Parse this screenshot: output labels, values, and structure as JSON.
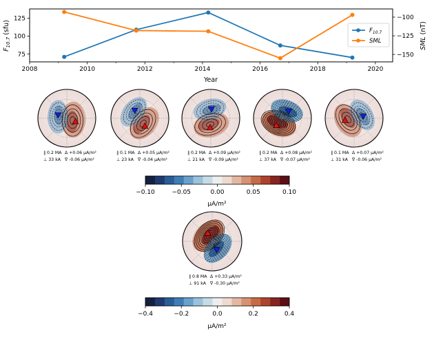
{
  "chart_data": [
    {
      "type": "line",
      "xlabel": "Year",
      "xlim": [
        2008,
        2020.6
      ],
      "xticks": [
        "2008",
        "2010",
        "2012",
        "2014",
        "2016",
        "2018",
        "2020"
      ],
      "left_axis": {
        "label": "F",
        "label_sub": "10.7",
        "label_unit": " (sfu)",
        "ylim": [
          64,
          138
        ],
        "ticks": [
          "75",
          "100",
          "125"
        ]
      },
      "right_axis": {
        "label": "SML",
        "label_unit": " (nT)",
        "ylim": [
          -160,
          -89
        ],
        "ticks": [
          "-100",
          "-125",
          "-150"
        ],
        "tick_labels": [
          "−100",
          "−125",
          "−150"
        ]
      },
      "series": [
        {
          "name": "F10.7",
          "legend_main": "F",
          "legend_sub": "10.7",
          "color": "#1f77b4",
          "axis": "left",
          "x": [
            2009.2,
            2011.7,
            2014.2,
            2016.7,
            2019.2
          ],
          "values": [
            71,
            109,
            133,
            87,
            70
          ]
        },
        {
          "name": "SML",
          "legend_main": "SML",
          "legend_sub": "",
          "color": "#ff7f0e",
          "axis": "right",
          "x": [
            2009.2,
            2011.7,
            2014.2,
            2016.7,
            2019.2
          ],
          "values": [
            -93,
            -118,
            -119,
            -155,
            -97
          ]
        }
      ],
      "legend_position": "upper-right"
    },
    {
      "type": "heatmap",
      "description": "polar current maps",
      "maps": [
        {
          "l1": "∥ 0.2 MA",
          "l2": "⊥ 33 kA",
          "r1": "Δ +0.06 μA/m²",
          "r2": "∇ -0.06 μA/m²"
        },
        {
          "l1": "∥ 0.1 MA",
          "l2": "⊥ 23 kA",
          "r1": "Δ +0.05 μA/m²",
          "r2": "∇ -0.04 μA/m²"
        },
        {
          "l1": "∥ 0.2 MA",
          "l2": "⊥ 21 kA",
          "r1": "Δ +0.09 μA/m²",
          "r2": "∇ -0.09 μA/m²"
        },
        {
          "l1": "∥ 0.2 MA",
          "l2": "⊥ 37 kA",
          "r1": "Δ +0.08 μA/m²",
          "r2": "∇ -0.07 μA/m²"
        },
        {
          "l1": "∥ 0.1 MA",
          "l2": "⊥ 31 kA",
          "r1": "Δ +0.07 μA/m²",
          "r2": "∇ -0.06 μA/m²"
        }
      ],
      "colorbar": {
        "ticks": [
          "−0.10",
          "−0.05",
          "0.00",
          "0.05",
          "0.10"
        ],
        "values": [
          -0.1,
          -0.05,
          0.0,
          0.05,
          0.1
        ],
        "label": "μA/m²"
      }
    },
    {
      "type": "heatmap",
      "description": "polar current map (difference)",
      "maps": [
        {
          "l1": "∥ 0.8 MA",
          "l2": "⊥ 91 kA",
          "r1": "Δ +0.33 μA/m²",
          "r2": "∇ -0.30 μA/m²"
        }
      ],
      "colorbar": {
        "ticks": [
          "−0.4",
          "−0.2",
          "0.0",
          "0.2",
          "0.4"
        ],
        "values": [
          -0.4,
          -0.2,
          0.0,
          0.2,
          0.4
        ],
        "label": "μA/m²"
      }
    }
  ],
  "colors": {
    "colormap": [
      "#14203f",
      "#1e3a6e",
      "#2a5d96",
      "#3f7eb5",
      "#6aa1cb",
      "#9bc2dc",
      "#c7dbe6",
      "#eceef0",
      "#eedad0",
      "#e3b8a2",
      "#d69272",
      "#c76a48",
      "#ae432d",
      "#862520",
      "#5a0f14"
    ],
    "map_bg": "#f3e6e4"
  }
}
